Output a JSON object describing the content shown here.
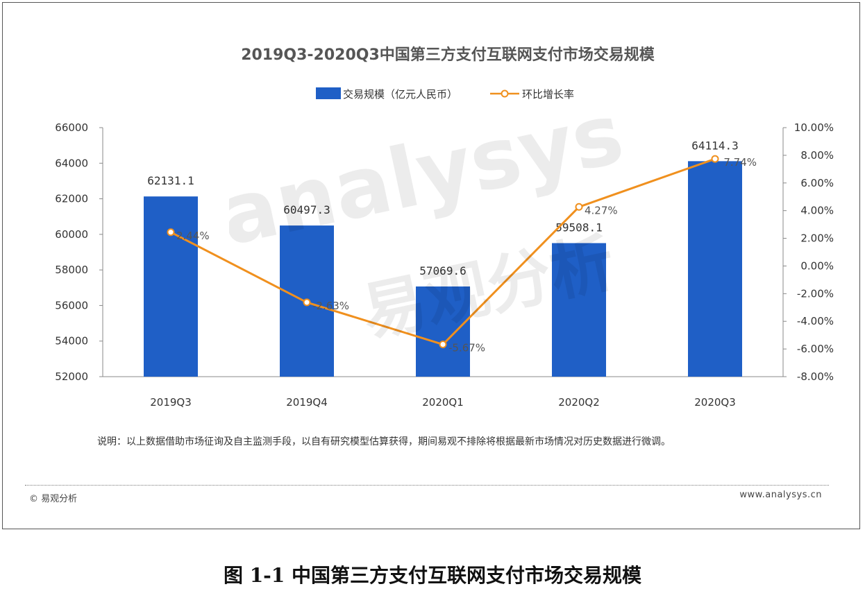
{
  "chart_data": {
    "type": "bar",
    "title": "2019Q3-2020Q3中国第三方支付互联网支付市场交易规模",
    "categories": [
      "2019Q3",
      "2019Q4",
      "2020Q1",
      "2020Q2",
      "2020Q3"
    ],
    "series": [
      {
        "name": "交易规模（亿元人民币）",
        "type": "bar",
        "axis": "left",
        "values": [
          62131.1,
          60497.3,
          57069.6,
          59508.1,
          64114.3
        ],
        "labels": [
          "62131.1",
          "60497.3",
          "57069.6",
          "59508.1",
          "64114.3"
        ]
      },
      {
        "name": "环比增长率",
        "type": "line",
        "axis": "right",
        "values": [
          2.44,
          -2.63,
          -5.67,
          4.27,
          7.74
        ],
        "labels": [
          "2.44%",
          "-2.63%",
          "-5.67%",
          "4.27%",
          "7.74%"
        ]
      }
    ],
    "y_left": {
      "min": 52000,
      "max": 66000,
      "ticks": [
        "52000",
        "54000",
        "56000",
        "58000",
        "60000",
        "62000",
        "64000",
        "66000"
      ]
    },
    "y_right": {
      "min": -8,
      "max": 10,
      "ticks": [
        "-8.00%",
        "-6.00%",
        "-4.00%",
        "-2.00%",
        "0.00%",
        "2.00%",
        "4.00%",
        "6.00%",
        "8.00%",
        "10.00%"
      ]
    },
    "legend_position": "top-center",
    "grid": false,
    "colors": {
      "bar": "#1f5fc6",
      "line": "#f0901e",
      "marker_fill": "#ffffff"
    }
  },
  "note": "说明：以上数据借助市场征询及自主监测手段，以自有研究模型估算获得，期间易观不排除将根据最新市场情况对历史数据进行微调。",
  "watermark": {
    "latin": "analysys",
    "chinese": "易观分析"
  },
  "footer": {
    "copyright": "© 易观分析",
    "website": "www.analysys.cn"
  },
  "caption": "图 1-1  中国第三方支付互联网支付市场交易规模"
}
